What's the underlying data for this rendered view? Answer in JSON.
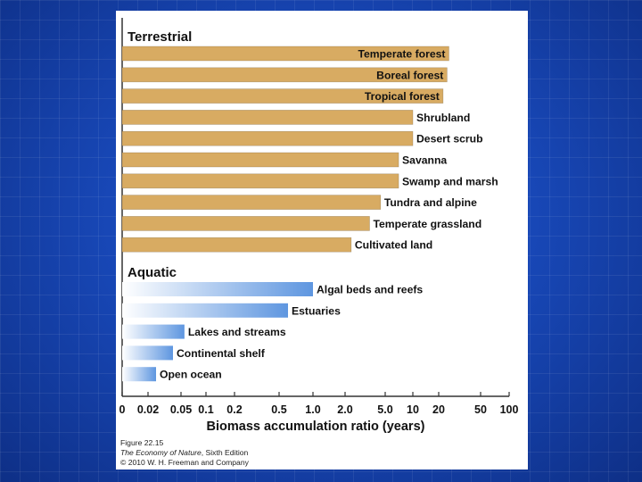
{
  "colors": {
    "background_blue": "#1848b8",
    "terrestrial_bar": "#d8ab62",
    "aquatic_bar_start": "#ffffff",
    "aquatic_bar_end": "#5e96e0"
  },
  "chart_data": {
    "type": "bar",
    "orientation": "horizontal",
    "scale": "log",
    "xlabel": "Biomass accumulation ratio (years)",
    "ticks": [
      "0",
      "0.02",
      "0.05",
      "0.1",
      "0.2",
      "0.5",
      "1.0",
      "2.0",
      "5.0",
      "10",
      "20",
      "50",
      "100"
    ],
    "groups": [
      {
        "name": "Terrestrial",
        "items": [
          {
            "label": "Temperate forest",
            "value": 25
          },
          {
            "label": "Boreal forest",
            "value": 24
          },
          {
            "label": "Tropical forest",
            "value": 22
          },
          {
            "label": "Shrubland",
            "value": 10
          },
          {
            "label": "Desert scrub",
            "value": 10
          },
          {
            "label": "Savanna",
            "value": 7
          },
          {
            "label": "Swamp and marsh",
            "value": 7
          },
          {
            "label": "Tundra and alpine",
            "value": 4.5
          },
          {
            "label": "Temperate grassland",
            "value": 3.5
          },
          {
            "label": "Cultivated land",
            "value": 2.3
          }
        ]
      },
      {
        "name": "Aquatic",
        "items": [
          {
            "label": "Algal beds and reefs",
            "value": 1.0
          },
          {
            "label": "Estuaries",
            "value": 0.6
          },
          {
            "label": "Lakes and streams",
            "value": 0.055
          },
          {
            "label": "Continental shelf",
            "value": 0.04
          },
          {
            "label": "Open ocean",
            "value": 0.025
          }
        ]
      }
    ]
  },
  "caption": {
    "figure": "Figure 22.15",
    "book_title": "The Economy of Nature",
    "edition": ", Sixth Edition",
    "copyright": "© 2010 W. H. Freeman and Company"
  }
}
